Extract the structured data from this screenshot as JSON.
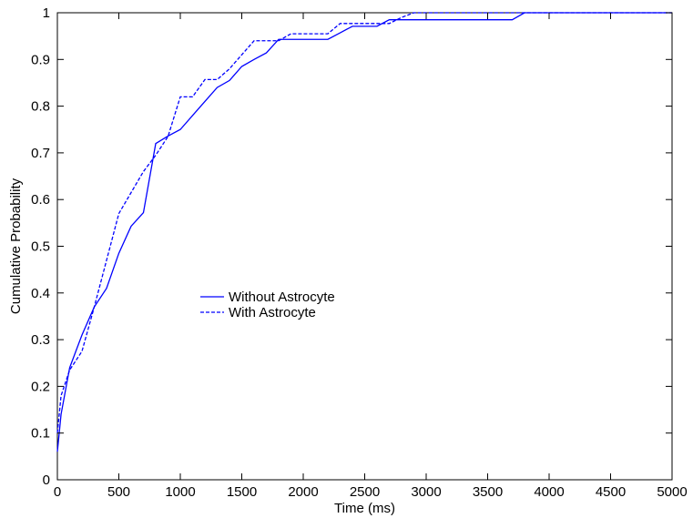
{
  "chart_data": {
    "type": "line",
    "title": "",
    "xlabel": "Time (ms)",
    "ylabel": "Cumulative Probability",
    "xlim": [
      0,
      5000
    ],
    "ylim": [
      0,
      1
    ],
    "xticks": [
      0,
      500,
      1000,
      1500,
      2000,
      2500,
      3000,
      3500,
      4000,
      4500,
      5000
    ],
    "yticks": [
      0,
      0.1,
      0.2,
      0.3,
      0.4,
      0.5,
      0.6,
      0.7,
      0.8,
      0.9,
      1
    ],
    "grid": false,
    "legend_position": "center-left",
    "series": [
      {
        "name": "Without Astrocyte",
        "line_style": "solid",
        "color": "#0000ff",
        "x": [
          0,
          30,
          100,
          200,
          300,
          400,
          500,
          600,
          700,
          800,
          900,
          1000,
          1100,
          1200,
          1300,
          1400,
          1500,
          1600,
          1700,
          1800,
          2000,
          2200,
          2300,
          2400,
          2600,
          2700,
          2800,
          3000,
          3500,
          3700,
          3800,
          4000,
          5000
        ],
        "y": [
          0.06,
          0.14,
          0.24,
          0.31,
          0.37,
          0.41,
          0.485,
          0.543,
          0.572,
          0.72,
          0.736,
          0.75,
          0.78,
          0.81,
          0.84,
          0.855,
          0.885,
          0.9,
          0.914,
          0.943,
          0.943,
          0.943,
          0.957,
          0.971,
          0.971,
          0.985,
          0.985,
          0.985,
          0.985,
          0.985,
          1,
          1,
          1
        ]
      },
      {
        "name": "With Astrocyte",
        "line_style": "dashed",
        "color": "#0000ff",
        "x": [
          0,
          30,
          100,
          200,
          300,
          400,
          500,
          600,
          700,
          800,
          900,
          1000,
          1100,
          1200,
          1300,
          1400,
          1500,
          1600,
          1700,
          1800,
          1900,
          2000,
          2200,
          2300,
          2400,
          2500,
          2600,
          2700,
          2800,
          2900,
          3000,
          5000
        ],
        "y": [
          0.1,
          0.18,
          0.235,
          0.275,
          0.37,
          0.47,
          0.57,
          0.615,
          0.66,
          0.695,
          0.735,
          0.82,
          0.82,
          0.857,
          0.857,
          0.88,
          0.91,
          0.94,
          0.94,
          0.94,
          0.955,
          0.955,
          0.955,
          0.977,
          0.977,
          0.977,
          0.977,
          0.977,
          0.99,
          1,
          1,
          1
        ]
      }
    ]
  }
}
